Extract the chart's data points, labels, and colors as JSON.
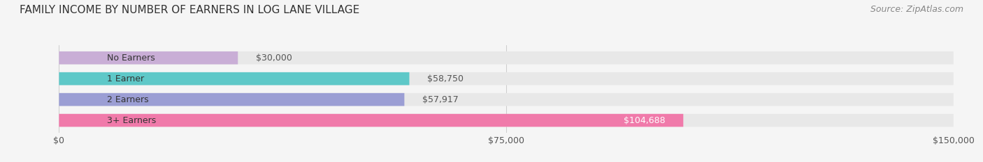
{
  "title": "FAMILY INCOME BY NUMBER OF EARNERS IN LOG LANE VILLAGE",
  "source": "Source: ZipAtlas.com",
  "categories": [
    "No Earners",
    "1 Earner",
    "2 Earners",
    "3+ Earners"
  ],
  "values": [
    30000,
    58750,
    57917,
    104688
  ],
  "labels": [
    "$30,000",
    "$58,750",
    "$57,917",
    "$104,688"
  ],
  "bar_colors": [
    "#c9aed6",
    "#5ec8c8",
    "#9b9ed4",
    "#f07aaa"
  ],
  "label_colors": [
    "#555555",
    "#555555",
    "#555555",
    "#ffffff"
  ],
  "xlim": [
    0,
    150000
  ],
  "xticks": [
    0,
    75000,
    150000
  ],
  "xticklabels": [
    "$0",
    "$75,000",
    "$150,000"
  ],
  "bg_color": "#f5f5f5",
  "bar_bg_color": "#e8e8e8",
  "title_fontsize": 11,
  "source_fontsize": 9,
  "label_fontsize": 9,
  "category_fontsize": 9,
  "tick_fontsize": 9,
  "bar_height": 0.62,
  "bar_gap": 0.38
}
